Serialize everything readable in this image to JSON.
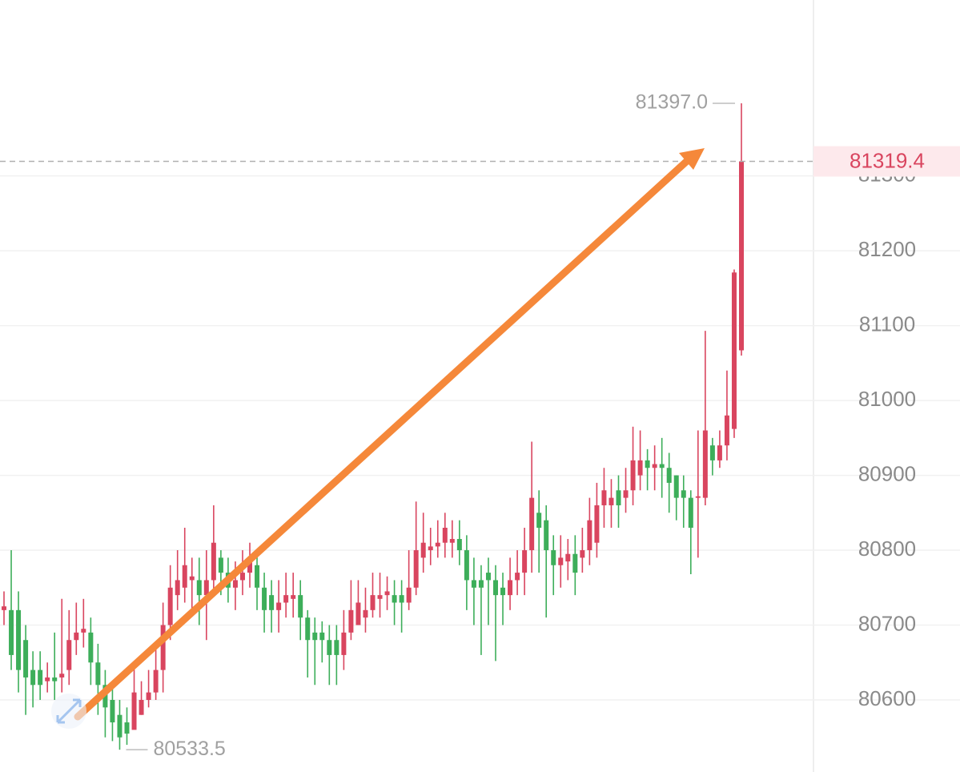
{
  "chart_data": {
    "type": "candlestick",
    "up_color": "#d9455f",
    "down_color": "#3dae5a",
    "grid": true,
    "ylim": [
      80508,
      81535
    ],
    "yticks": [
      80600,
      80700,
      80800,
      80900,
      81000,
      81100,
      81200,
      81300
    ],
    "open": [
      80720,
      80720,
      80720,
      80680,
      80640,
      80640,
      80625,
      80630,
      80630,
      80640,
      80680,
      80690,
      80690,
      80650,
      80620,
      80600,
      80580,
      80570,
      80560,
      80580,
      80600,
      80610,
      80640,
      80700,
      80740,
      80750,
      80760,
      80760,
      80740,
      80760,
      80790,
      80770,
      80750,
      80760,
      80770,
      80780,
      80750,
      80740,
      80720,
      80730,
      80735,
      80740,
      80710,
      80690,
      80690,
      80680,
      80680,
      80660,
      80690,
      80700,
      80710,
      80720,
      80735,
      80740,
      80740,
      80740,
      80730,
      80750,
      80790,
      80800,
      80805,
      80810,
      80810,
      80815,
      80800,
      80760,
      80760,
      80770,
      80760,
      80750,
      80740,
      80760,
      80770,
      80800,
      80850,
      80840,
      80800,
      80780,
      80785,
      80795,
      80790,
      80800,
      80810,
      80860,
      80860,
      80880,
      80870,
      80880,
      80900,
      80920,
      80910,
      80915,
      80910,
      80900,
      80880,
      80870,
      80870,
      80870,
      80940,
      80920,
      80940,
      80962,
      81067
    ],
    "high": [
      80745,
      80800,
      80745,
      80700,
      80665,
      80665,
      80650,
      80690,
      80735,
      80720,
      80730,
      80735,
      80710,
      80675,
      80640,
      80620,
      80600,
      80590,
      80650,
      80625,
      80640,
      80670,
      80730,
      80780,
      80800,
      80830,
      80790,
      80790,
      80800,
      80860,
      80800,
      80790,
      80785,
      80800,
      80810,
      80800,
      80770,
      80760,
      80760,
      80770,
      80770,
      80760,
      80720,
      80710,
      80705,
      80700,
      80700,
      80720,
      80760,
      80760,
      80750,
      80770,
      80770,
      80765,
      80760,
      80760,
      80800,
      80865,
      80850,
      80830,
      80840,
      80850,
      80840,
      80840,
      80820,
      80790,
      80780,
      80790,
      80780,
      80770,
      80790,
      80800,
      80830,
      80945,
      80880,
      80860,
      80820,
      80820,
      80815,
      80820,
      80830,
      80870,
      80890,
      80910,
      80895,
      80900,
      80910,
      80965,
      80960,
      80935,
      80940,
      80950,
      80930,
      80900,
      80900,
      80880,
      80960,
      81093,
      80950,
      80960,
      81040,
      81175,
      81397
    ],
    "low": [
      80700,
      80640,
      80610,
      80580,
      80590,
      80600,
      80610,
      80600,
      80610,
      80620,
      80660,
      80670,
      80620,
      80580,
      80550,
      80545,
      80533.5,
      80540,
      80570,
      80580,
      80590,
      80600,
      80610,
      80680,
      80720,
      80730,
      80720,
      80700,
      80680,
      80740,
      80740,
      80730,
      80720,
      80740,
      80750,
      80720,
      80690,
      80690,
      80690,
      80710,
      80710,
      80680,
      80630,
      80620,
      80650,
      80620,
      80620,
      80640,
      80680,
      80700,
      80690,
      80710,
      80710,
      80720,
      80700,
      80690,
      80720,
      80740,
      80770,
      80780,
      80790,
      80790,
      80790,
      80780,
      80720,
      80700,
      80660,
      80700,
      80652,
      80700,
      80720,
      80740,
      80740,
      80770,
      80770,
      80710,
      80740,
      80750,
      80760,
      80740,
      80770,
      80780,
      80790,
      80830,
      80830,
      80830,
      80850,
      80860,
      80880,
      80880,
      80880,
      80870,
      80850,
      80840,
      80830,
      80768,
      80790,
      80860,
      80900,
      80910,
      80920,
      80950,
      81060
    ],
    "close": [
      80725,
      80660,
      80640,
      80630,
      80620,
      80620,
      80630,
      80625,
      80635,
      80680,
      80690,
      80695,
      80650,
      80620,
      80590,
      80570,
      80550,
      80555,
      80610,
      80600,
      80610,
      80640,
      80700,
      80750,
      80760,
      80780,
      80765,
      80740,
      80760,
      80810,
      80770,
      80750,
      80760,
      80770,
      80790,
      80750,
      80720,
      80720,
      80730,
      80740,
      80740,
      80710,
      80680,
      80680,
      80680,
      80660,
      80660,
      80690,
      80720,
      80730,
      80720,
      80740,
      80740,
      80745,
      80730,
      80730,
      80750,
      80800,
      80810,
      80805,
      80810,
      80830,
      80815,
      80800,
      80760,
      80750,
      80750,
      80760,
      80740,
      80740,
      80760,
      80770,
      80800,
      80870,
      80830,
      80800,
      80780,
      80790,
      80795,
      80770,
      80800,
      80840,
      80860,
      80880,
      80870,
      80860,
      80880,
      80920,
      80920,
      80910,
      80915,
      80910,
      80890,
      80870,
      80870,
      80830,
      80872,
      80960,
      80920,
      80940,
      80980,
      81171,
      81319.4
    ],
    "max_marker": {
      "value": 81397,
      "label": "81397.0"
    },
    "min_marker": 80533.5,
    "last_price": 81319.4
  }
}
